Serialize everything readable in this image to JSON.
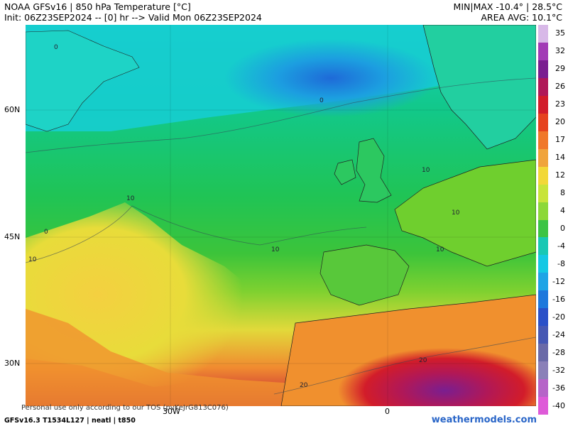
{
  "header": {
    "title": "NOAA GFSv16 | 850 hPa Temperature [°C]",
    "init": "Init: 06Z23SEP2024 -- [0] hr --> Valid Mon 06Z23SEP2024",
    "minmax": "MIN|MAX -10.4° | 28.5°C",
    "area_avg": "AREA AVG: 10.1°C"
  },
  "axes": {
    "lat_ticks": [
      "60N",
      "45N",
      "30N"
    ],
    "lon_ticks": [
      "30W",
      "0"
    ]
  },
  "contour_labels": [
    "0",
    "0",
    "10",
    "0",
    "10",
    "10",
    "10",
    "10",
    "10",
    "20",
    "20"
  ],
  "colorbar": {
    "labels": [
      "35",
      "32",
      "29",
      "26",
      "23",
      "20",
      "17",
      "14",
      "12",
      "8",
      "4",
      "0",
      "-4",
      "-8",
      "-12",
      "-16",
      "-20",
      "-24",
      "-28",
      "-32",
      "-36",
      "-40"
    ],
    "colors": [
      "#d8b9e8",
      "#a23bb6",
      "#7a1e90",
      "#b01858",
      "#d21c2a",
      "#e6421e",
      "#f0782a",
      "#f0a43c",
      "#f2d838",
      "#c8e43a",
      "#8cd838",
      "#3cc444",
      "#18c8b4",
      "#14c8e4",
      "#1ea4e6",
      "#1e78dc",
      "#2a50c8",
      "#4658b4",
      "#6a6aa8",
      "#8a80b8",
      "#b664c8",
      "#de5ad8"
    ]
  },
  "footer": {
    "tos": "Personal use only according to our TOS (pvKeJrG813C076)",
    "model": "GFSv16.3 T1534L127 | neatl | t850",
    "brand": "weathermodels.com"
  }
}
